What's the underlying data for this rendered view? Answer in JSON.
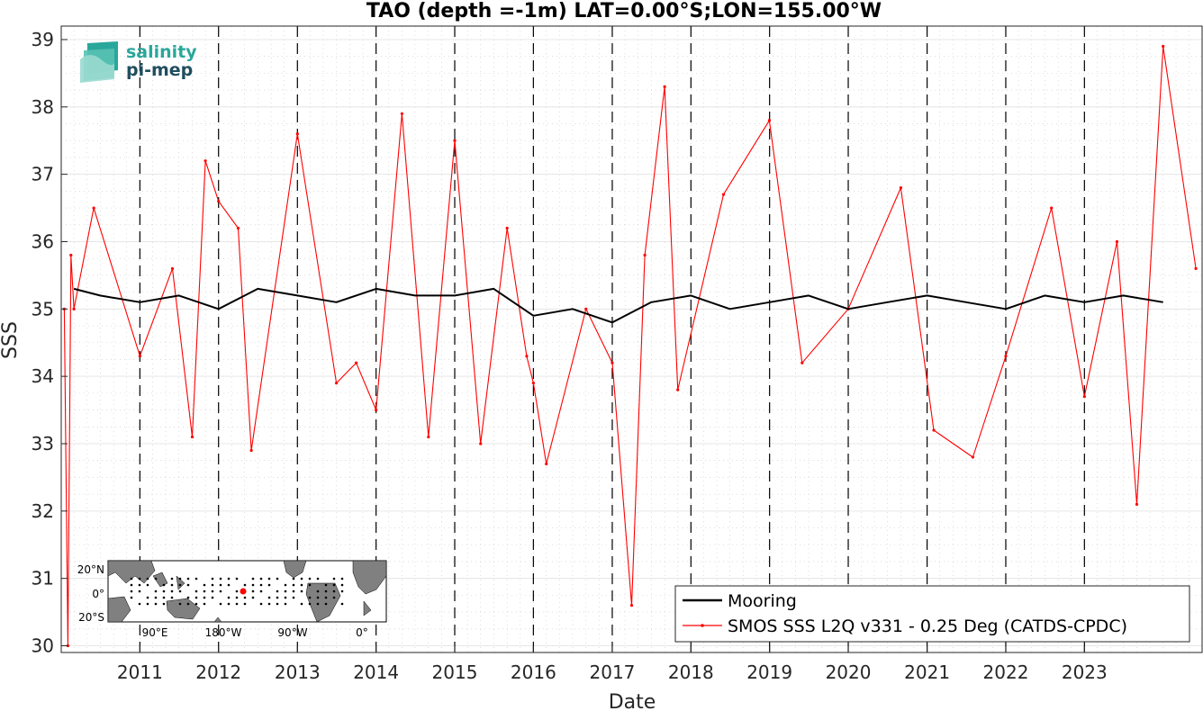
{
  "chart_data": {
    "type": "line",
    "title": "TAO (depth =-1m) LAT=0.00°S;LON=155.00°W",
    "xlabel": "Date",
    "ylabel": "SSS",
    "xlim": [
      "2010-01-01",
      "2024-06-30"
    ],
    "ylim": [
      29.9,
      39.2
    ],
    "y_ticks": [
      30,
      31,
      32,
      33,
      34,
      35,
      36,
      37,
      38,
      39
    ],
    "x_tick_labels": [
      "2011",
      "2012",
      "2013",
      "2014",
      "2015",
      "2016",
      "2017",
      "2018",
      "2019",
      "2020",
      "2021",
      "2022",
      "2023"
    ],
    "x_tick_dates": [
      "2011-01-01",
      "2012-01-01",
      "2013-01-01",
      "2014-01-01",
      "2015-01-01",
      "2016-01-01",
      "2017-01-01",
      "2018-01-01",
      "2019-01-01",
      "2020-01-01",
      "2021-01-01",
      "2022-01-01",
      "2023-01-01"
    ],
    "year_boundaries_dashed": true,
    "grid": true,
    "minor_grid": true,
    "legend_position": "bottom-right",
    "series": [
      {
        "name": "Mooring",
        "color": "#000000",
        "style": "line",
        "x": [
          "2010-03-01",
          "2010-07-01",
          "2011-01-01",
          "2011-07-01",
          "2012-01-01",
          "2012-07-01",
          "2013-01-01",
          "2013-07-01",
          "2014-01-01",
          "2014-07-01",
          "2015-01-01",
          "2015-07-01",
          "2016-01-01",
          "2016-07-01",
          "2017-01-01",
          "2017-07-01",
          "2018-01-01",
          "2018-07-01",
          "2019-01-01",
          "2019-07-01",
          "2020-01-01",
          "2020-07-01",
          "2021-01-01",
          "2021-07-01",
          "2022-01-01",
          "2022-07-01",
          "2023-01-01",
          "2023-07-01",
          "2024-01-01"
        ],
        "y": [
          35.3,
          35.2,
          35.1,
          35.2,
          35.0,
          35.3,
          35.2,
          35.1,
          35.3,
          35.2,
          35.2,
          35.3,
          34.9,
          35.0,
          34.8,
          35.1,
          35.2,
          35.0,
          35.1,
          35.2,
          35.0,
          35.1,
          35.2,
          35.1,
          35.0,
          35.2,
          35.1,
          35.2,
          35.1
        ]
      },
      {
        "name": "SMOS SSS L2Q v331 - 0.25 Deg (CATDS-CPDC)",
        "color": "#ff0000",
        "style": "line-with-dots",
        "x": [
          "2010-01-15",
          "2010-02-01",
          "2010-02-15",
          "2010-03-01",
          "2010-06-01",
          "2011-01-01",
          "2011-06-01",
          "2011-09-01",
          "2011-11-01",
          "2012-01-01",
          "2012-04-01",
          "2012-06-01",
          "2013-01-01",
          "2013-07-01",
          "2013-10-01",
          "2014-01-01",
          "2014-05-01",
          "2014-09-01",
          "2015-01-01",
          "2015-05-01",
          "2015-09-01",
          "2015-12-01",
          "2016-01-01",
          "2016-03-01",
          "2016-09-01",
          "2017-01-01",
          "2017-04-01",
          "2017-06-01",
          "2017-09-01",
          "2017-11-01",
          "2018-06-01",
          "2018-12-31",
          "2019-06-01",
          "2020-01-01",
          "2020-09-01",
          "2021-02-01",
          "2021-08-01",
          "2022-01-01",
          "2022-08-01",
          "2023-01-01",
          "2023-06-01",
          "2023-09-01",
          "2024-01-01",
          "2024-06-01"
        ],
        "y": [
          35.0,
          30.0,
          35.8,
          35.0,
          36.5,
          34.3,
          35.6,
          33.1,
          37.2,
          36.6,
          36.2,
          32.9,
          37.6,
          33.9,
          34.2,
          33.5,
          37.9,
          33.1,
          37.5,
          33.0,
          36.2,
          34.3,
          33.9,
          32.7,
          35.0,
          34.2,
          30.6,
          35.8,
          38.3,
          33.8,
          36.7,
          37.8,
          34.2,
          35.0,
          36.8,
          33.2,
          32.8,
          34.3,
          36.5,
          33.7,
          36.0,
          32.1,
          38.9,
          35.6
        ]
      }
    ]
  },
  "logo": {
    "line1": "salinity",
    "line2": "pi-mep"
  },
  "inset_map": {
    "lat_labels": [
      "20°N",
      "0°",
      "20°S"
    ],
    "lon_labels": [
      "90°E",
      "180°W",
      "90°W",
      "0°"
    ],
    "mooring_marker_color": "#ff0000",
    "land_color": "#808080"
  }
}
